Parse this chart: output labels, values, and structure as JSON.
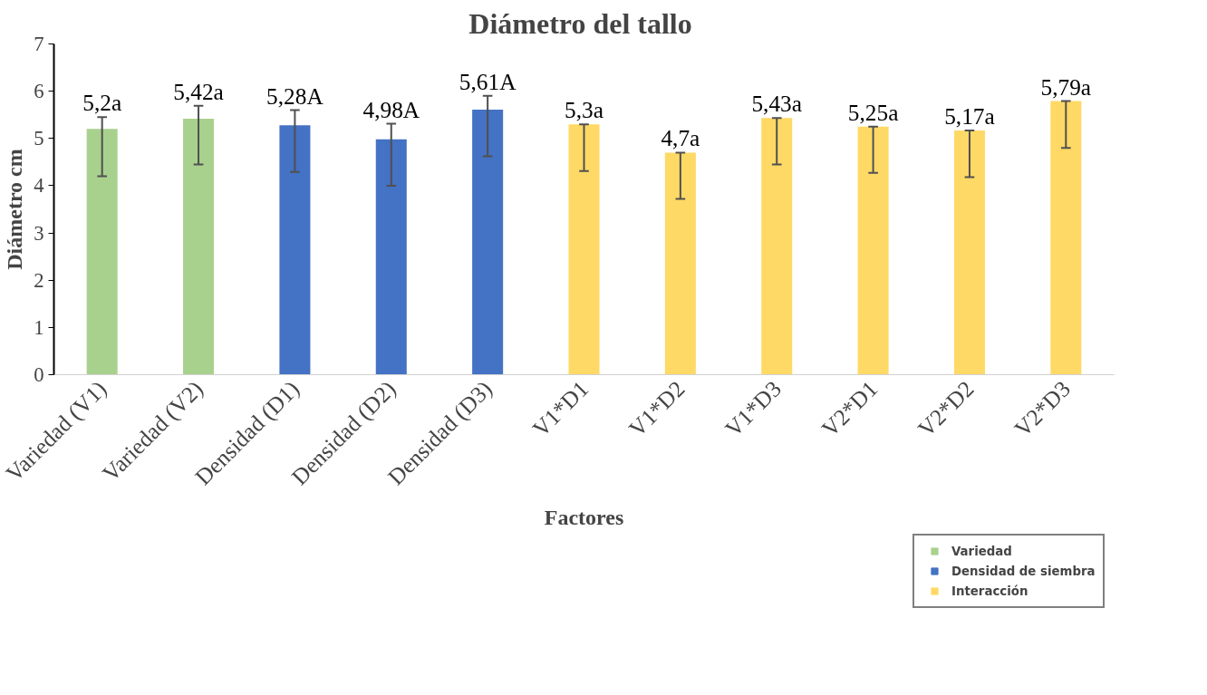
{
  "chart_data": {
    "type": "bar",
    "title": "Diámetro  del tallo",
    "xlabel": "Factores",
    "ylabel": "Diámetro cm",
    "categories": [
      "Variedad (V1)",
      "Variedad (V2)",
      "Densidad (D1)",
      "Densidad (D2)",
      "Densidad (D3)",
      "V1*D1",
      "V1*D2",
      "V1*D3",
      "V2*D1",
      "V2*D2",
      "V2*D3"
    ],
    "series": [
      {
        "name": "Variedad",
        "color": "#a9d18e",
        "values": [
          5.2,
          5.42,
          null,
          null,
          null,
          null,
          null,
          null,
          null,
          null,
          null
        ],
        "errors": [
          [
            4.2,
            5.45
          ],
          [
            4.45,
            5.69
          ],
          null,
          null,
          null,
          null,
          null,
          null,
          null,
          null,
          null
        ],
        "value_labels": [
          "5,2a",
          "5,42a",
          null,
          null,
          null,
          null,
          null,
          null,
          null,
          null,
          null
        ]
      },
      {
        "name": "Densidad de siembra",
        "color": "#4472c4",
        "values": [
          null,
          null,
          5.28,
          4.98,
          5.61,
          null,
          null,
          null,
          null,
          null,
          null
        ],
        "errors": [
          null,
          null,
          [
            4.29,
            5.6
          ],
          [
            4.0,
            5.31
          ],
          [
            4.62,
            5.9
          ],
          null,
          null,
          null,
          null,
          null,
          null
        ],
        "value_labels": [
          null,
          null,
          "5,28A",
          "4,98A",
          "5,61A",
          null,
          null,
          null,
          null,
          null,
          null
        ]
      },
      {
        "name": "Interacción",
        "color": "#ffd966",
        "values": [
          null,
          null,
          null,
          null,
          null,
          5.3,
          4.7,
          5.43,
          5.25,
          5.17,
          5.79
        ],
        "errors": [
          null,
          null,
          null,
          null,
          null,
          [
            4.31,
            5.3
          ],
          [
            3.72,
            4.7
          ],
          [
            4.45,
            5.43
          ],
          [
            4.27,
            5.25
          ],
          [
            4.18,
            5.17
          ],
          [
            4.8,
            5.79
          ]
        ],
        "value_labels": [
          null,
          null,
          null,
          null,
          null,
          "5,3a",
          "4,7a",
          "5,43a",
          "5,25a",
          "5,17a",
          "5,79a"
        ]
      }
    ],
    "ylim": [
      0,
      7
    ],
    "yticks": [
      0,
      1,
      2,
      3,
      4,
      5,
      6,
      7
    ],
    "grid": false,
    "legend": "bottom right"
  }
}
